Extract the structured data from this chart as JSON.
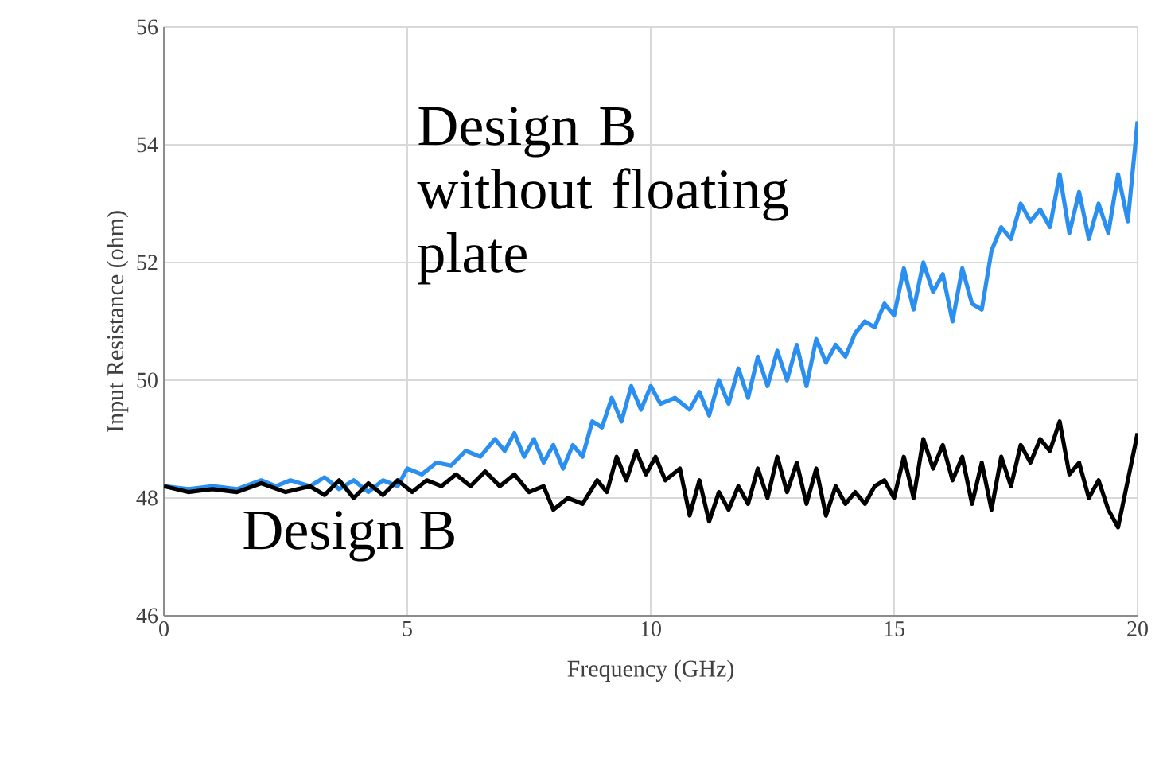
{
  "chart_data": {
    "type": "line",
    "xlabel": "Frequency (GHz)",
    "ylabel": "Input Resistance (ohm)",
    "xlim": [
      0,
      20
    ],
    "ylim": [
      46,
      56
    ],
    "xticks": [
      0,
      5,
      10,
      15,
      20
    ],
    "yticks": [
      46,
      48,
      50,
      52,
      54,
      56
    ],
    "grid": true,
    "line_style": "solid",
    "annotations": [
      "Design B without floating plate",
      "Design B"
    ],
    "series": [
      {
        "color": "#2b8ff0",
        "x": [
          0,
          0.5,
          1,
          1.5,
          2,
          2.3,
          2.6,
          3,
          3.3,
          3.6,
          3.9,
          4.2,
          4.5,
          4.8,
          5.0,
          5.3,
          5.6,
          5.9,
          6.2,
          6.5,
          6.8,
          7.0,
          7.2,
          7.4,
          7.6,
          7.8,
          8.0,
          8.2,
          8.4,
          8.6,
          8.8,
          9.0,
          9.2,
          9.4,
          9.6,
          9.8,
          10.0,
          10.2,
          10.5,
          10.8,
          11.0,
          11.2,
          11.4,
          11.6,
          11.8,
          12.0,
          12.2,
          12.4,
          12.6,
          12.8,
          13.0,
          13.2,
          13.4,
          13.6,
          13.8,
          14.0,
          14.2,
          14.4,
          14.6,
          14.8,
          15.0,
          15.2,
          15.4,
          15.6,
          15.8,
          16.0,
          16.2,
          16.4,
          16.6,
          16.8,
          17.0,
          17.2,
          17.4,
          17.6,
          17.8,
          18.0,
          18.2,
          18.4,
          18.6,
          18.8,
          19.0,
          19.2,
          19.4,
          19.6,
          19.8,
          20.0
        ],
        "values": [
          48.2,
          48.15,
          48.2,
          48.15,
          48.3,
          48.2,
          48.3,
          48.2,
          48.35,
          48.15,
          48.3,
          48.1,
          48.3,
          48.2,
          48.5,
          48.4,
          48.6,
          48.55,
          48.8,
          48.7,
          49.0,
          48.8,
          49.1,
          48.7,
          49.0,
          48.6,
          48.9,
          48.5,
          48.9,
          48.7,
          49.3,
          49.2,
          49.7,
          49.3,
          49.9,
          49.5,
          49.9,
          49.6,
          49.7,
          49.5,
          49.8,
          49.4,
          50.0,
          49.6,
          50.2,
          49.7,
          50.4,
          49.9,
          50.5,
          50.0,
          50.6,
          49.9,
          50.7,
          50.3,
          50.6,
          50.4,
          50.8,
          51.0,
          50.9,
          51.3,
          51.1,
          51.9,
          51.2,
          52.0,
          51.5,
          51.8,
          51.0,
          51.9,
          51.3,
          51.2,
          52.2,
          52.6,
          52.4,
          53.0,
          52.7,
          52.9,
          52.6,
          53.5,
          52.5,
          53.2,
          52.4,
          53.0,
          52.5,
          53.5,
          52.7,
          54.4
        ]
      },
      {
        "color": "#000000",
        "x": [
          0,
          0.5,
          1,
          1.5,
          2,
          2.5,
          3,
          3.3,
          3.6,
          3.9,
          4.2,
          4.5,
          4.8,
          5.1,
          5.4,
          5.7,
          6.0,
          6.3,
          6.6,
          6.9,
          7.2,
          7.5,
          7.8,
          8.0,
          8.3,
          8.6,
          8.9,
          9.1,
          9.3,
          9.5,
          9.7,
          9.9,
          10.1,
          10.3,
          10.6,
          10.8,
          11.0,
          11.2,
          11.4,
          11.6,
          11.8,
          12.0,
          12.2,
          12.4,
          12.6,
          12.8,
          13.0,
          13.2,
          13.4,
          13.6,
          13.8,
          14.0,
          14.2,
          14.4,
          14.6,
          14.8,
          15.0,
          15.2,
          15.4,
          15.6,
          15.8,
          16.0,
          16.2,
          16.4,
          16.6,
          16.8,
          17.0,
          17.2,
          17.4,
          17.6,
          17.8,
          18.0,
          18.2,
          18.4,
          18.6,
          18.8,
          19.0,
          19.2,
          19.4,
          19.6,
          19.8,
          20.0
        ],
        "values": [
          48.2,
          48.1,
          48.15,
          48.1,
          48.25,
          48.1,
          48.2,
          48.05,
          48.3,
          48.0,
          48.25,
          48.05,
          48.3,
          48.1,
          48.3,
          48.2,
          48.4,
          48.2,
          48.45,
          48.2,
          48.4,
          48.1,
          48.2,
          47.8,
          48.0,
          47.9,
          48.3,
          48.1,
          48.7,
          48.3,
          48.8,
          48.4,
          48.7,
          48.3,
          48.5,
          47.7,
          48.3,
          47.6,
          48.1,
          47.8,
          48.2,
          47.9,
          48.5,
          48.0,
          48.7,
          48.1,
          48.6,
          47.9,
          48.5,
          47.7,
          48.2,
          47.9,
          48.1,
          47.9,
          48.2,
          48.3,
          48.0,
          48.7,
          48.0,
          49.0,
          48.5,
          48.9,
          48.3,
          48.7,
          47.9,
          48.6,
          47.8,
          48.7,
          48.2,
          48.9,
          48.6,
          49.0,
          48.8,
          49.3,
          48.4,
          48.6,
          48.0,
          48.3,
          47.8,
          47.5,
          48.3,
          49.1
        ]
      }
    ]
  }
}
